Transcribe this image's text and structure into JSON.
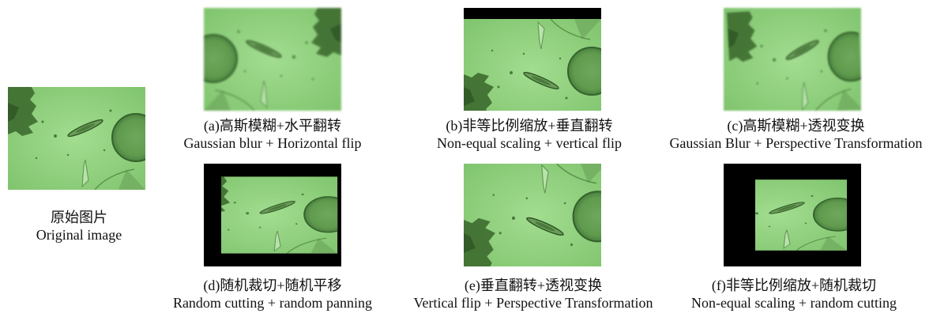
{
  "original": {
    "label_cn": "原始图片",
    "label_en": "Original image"
  },
  "panels": [
    {
      "id": "a",
      "label_cn": "(a)高斯模糊+水平翻转",
      "label_en": "Gaussian blur + Horizontal flip"
    },
    {
      "id": "b",
      "label_cn": "(b)非等比例缩放+垂直翻转",
      "label_en": "Non-equal scaling + vertical flip"
    },
    {
      "id": "c",
      "label_cn": "(c)高斯模糊+透视变换",
      "label_en": "Gaussian Blur + Perspective Transformation"
    },
    {
      "id": "d",
      "label_cn": "(d)随机裁切+随机平移",
      "label_en": "Random cutting + random panning"
    },
    {
      "id": "e",
      "label_cn": "(e)垂直翻转+透视变换",
      "label_en": "Vertical flip + Perspective Transformation"
    },
    {
      "id": "f",
      "label_cn": "(f)非等比例缩放+随机裁切",
      "label_en": "Non-equal scaling + random cutting"
    }
  ],
  "colors": {
    "microscope_bg": "#8fd07f",
    "microscope_dark": "#3d6b2f",
    "cell": "#4d8040",
    "letterbox": "#000000"
  }
}
